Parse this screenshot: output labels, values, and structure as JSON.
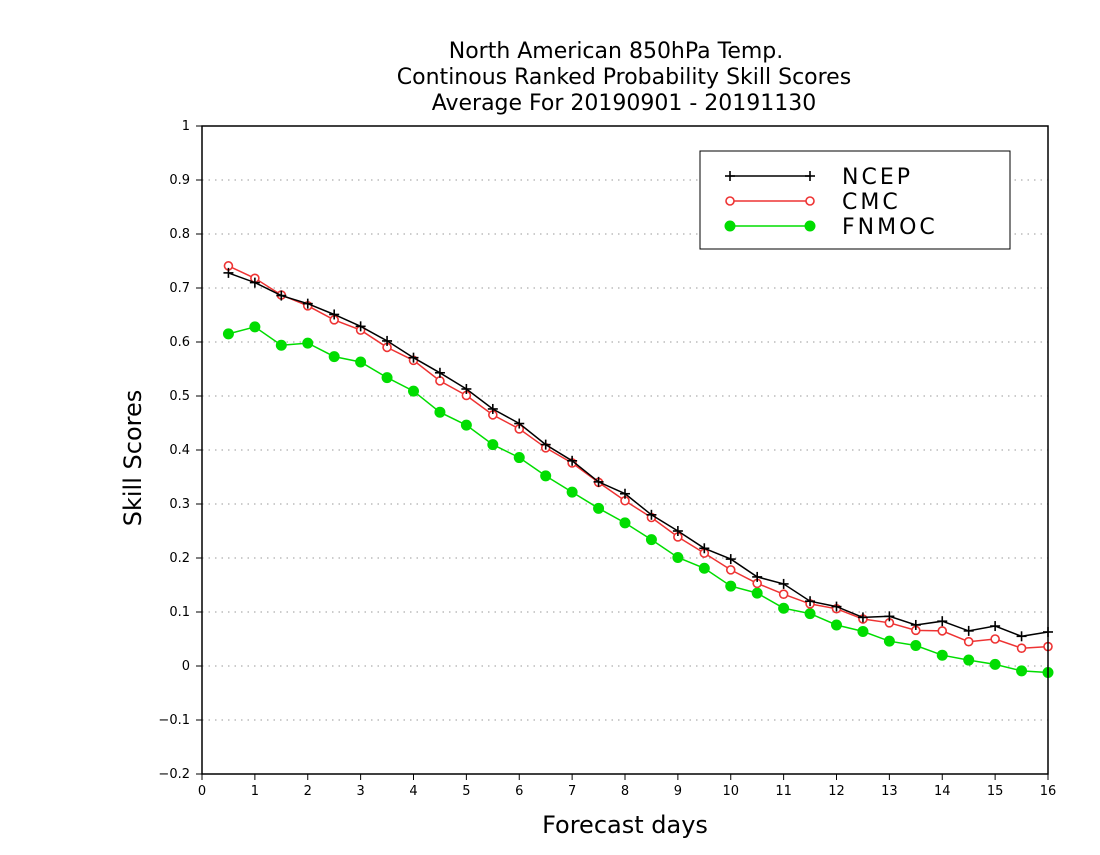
{
  "chart_data": {
    "type": "line",
    "title_lines": [
      "North American 850hPa Temp.",
      "Continous Ranked Probability Skill Scores",
      "Average For 20190901 - 20191130"
    ],
    "xlabel": "Forecast days",
    "ylabel": "Skill Scores",
    "xlim": [
      0,
      16
    ],
    "ylim": [
      -0.2,
      1
    ],
    "x_ticks": [
      "0",
      "1",
      "2",
      "3",
      "4",
      "5",
      "6",
      "7",
      "8",
      "9",
      "10",
      "11",
      "12",
      "13",
      "14",
      "15",
      "16"
    ],
    "y_ticks": [
      "−0.2",
      "−0.1",
      "0",
      "0.1",
      "0.2",
      "0.3",
      "0.4",
      "0.5",
      "0.6",
      "0.7",
      "0.8",
      "0.9",
      "1"
    ],
    "y_tick_values": [
      -0.2,
      -0.1,
      0,
      0.1,
      0.2,
      0.3,
      0.4,
      0.5,
      0.6,
      0.7,
      0.8,
      0.9,
      1.0
    ],
    "grid": "horizontal dotted",
    "legend_position": "top-right",
    "x": [
      0.5,
      1,
      1.5,
      2,
      2.5,
      3,
      3.5,
      4,
      4.5,
      5,
      5.5,
      6,
      6.5,
      7,
      7.5,
      8,
      8.5,
      9,
      9.5,
      10,
      10.5,
      11,
      11.5,
      12,
      12.5,
      13,
      13.5,
      14,
      14.5,
      15,
      15.5,
      16
    ],
    "series": [
      {
        "name": "NCEP",
        "color": "#000000",
        "marker": "plus",
        "values": [
          0.728,
          0.71,
          0.686,
          0.671,
          0.651,
          0.629,
          0.602,
          0.571,
          0.543,
          0.513,
          0.476,
          0.449,
          0.41,
          0.38,
          0.341,
          0.319,
          0.28,
          0.25,
          0.218,
          0.198,
          0.165,
          0.152,
          0.12,
          0.11,
          0.09,
          0.092,
          0.076,
          0.083,
          0.065,
          0.074,
          0.055,
          0.063
        ]
      },
      {
        "name": "CMC",
        "color": "#ee3333",
        "marker": "open-circle",
        "values": [
          0.741,
          0.718,
          0.687,
          0.667,
          0.641,
          0.622,
          0.59,
          0.566,
          0.528,
          0.501,
          0.465,
          0.439,
          0.404,
          0.376,
          0.34,
          0.306,
          0.275,
          0.239,
          0.209,
          0.178,
          0.153,
          0.133,
          0.115,
          0.106,
          0.087,
          0.08,
          0.066,
          0.065,
          0.045,
          0.05,
          0.033,
          0.036
        ]
      },
      {
        "name": "FNMOC",
        "color": "#00dd00",
        "marker": "filled-circle",
        "values": [
          0.615,
          0.628,
          0.594,
          0.598,
          0.573,
          0.563,
          0.534,
          0.509,
          0.47,
          0.446,
          0.41,
          0.386,
          0.352,
          0.322,
          0.292,
          0.265,
          0.234,
          0.201,
          0.181,
          0.148,
          0.135,
          0.107,
          0.097,
          0.076,
          0.064,
          0.046,
          0.038,
          0.02,
          0.011,
          0.003,
          -0.009,
          -0.012
        ]
      }
    ]
  }
}
